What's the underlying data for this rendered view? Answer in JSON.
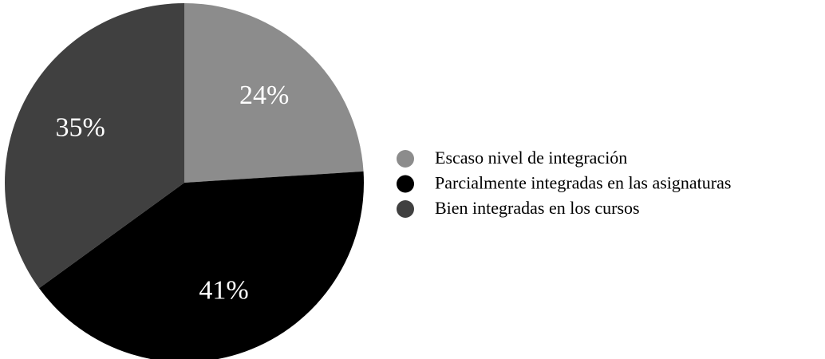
{
  "chart_data": {
    "type": "pie",
    "categories": [
      "Escaso nivel de integración",
      "Parcialmente integradas en las asignaturas",
      "Bien integradas en los cursos"
    ],
    "values": [
      24,
      41,
      35
    ],
    "value_labels": [
      "24%",
      "41%",
      "35%"
    ],
    "colors": [
      "#8c8c8c",
      "#000000",
      "#404040"
    ],
    "legend": "right"
  }
}
